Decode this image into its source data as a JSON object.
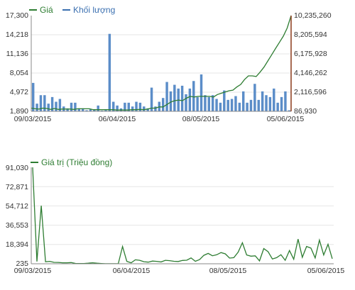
{
  "chart_data": [
    {
      "type": "line+bar",
      "legend": [
        {
          "label": "Giá",
          "color": "#2e7d32"
        },
        {
          "label": "Khối lượng",
          "color": "#3a6fb0"
        }
      ],
      "left_ticks": [
        "17,300",
        "14,218",
        "11,136",
        "8,054",
        "4,972",
        "1,890"
      ],
      "right_ticks": [
        "10,235,260",
        "8,205,594",
        "6,175,928",
        "4,146,262",
        "2,116,596",
        "86,930"
      ],
      "x_ticks": [
        "09/03/2015",
        "06/04/2015",
        "08/05/2015",
        "05/06/2015"
      ],
      "price_range": [
        1890,
        17300
      ],
      "volume_range": [
        86930,
        10235260
      ],
      "price": [
        2400,
        2300,
        2250,
        2400,
        2350,
        2200,
        2350,
        2200,
        2250,
        2250,
        2250,
        2200,
        2300,
        2300,
        2300,
        2300,
        2150,
        2150,
        2150,
        2150,
        2150,
        2150,
        2100,
        2100,
        2100,
        2100,
        2150,
        2150,
        2200,
        2150,
        2250,
        2400,
        2400,
        2600,
        2600,
        3000,
        3400,
        3600,
        3700,
        3600,
        4000,
        4300,
        4200,
        4300,
        4300,
        4300,
        4300,
        4200,
        4600,
        4800,
        5000,
        5200,
        5300,
        5800,
        6200,
        7000,
        7600,
        7600,
        7500,
        8200,
        9000,
        10000,
        11000,
        12000,
        13000,
        14000,
        15300,
        17300
      ],
      "volume": [
        3100000,
        900000,
        1800000,
        1800000,
        900000,
        1600000,
        1100000,
        1400000,
        600000,
        400000,
        1000000,
        1000000,
        400000,
        400000,
        200000,
        300000,
        250000,
        700000,
        150000,
        200000,
        8300000,
        1100000,
        700000,
        400000,
        1000000,
        1000000,
        600000,
        1100000,
        1000000,
        600000,
        400000,
        2600000,
        600000,
        1100000,
        1500000,
        3200000,
        2200000,
        2900000,
        2500000,
        2800000,
        1900000,
        2500000,
        3300000,
        1600000,
        4000000,
        1800000,
        1600000,
        1800000,
        1400000,
        1000000,
        2300000,
        1300000,
        1400000,
        1700000,
        1000000,
        2200000,
        1000000,
        1300000,
        3000000,
        1300000,
        2200000,
        1800000,
        1600000,
        2500000,
        1000000,
        1600000,
        2200000,
        200000
      ]
    },
    {
      "type": "line",
      "legend": [
        {
          "label": "Giá trị (Triệu đồng)",
          "color": "#2e7d32"
        }
      ],
      "y_ticks": [
        "91,030",
        "72,871",
        "54,712",
        "36,553",
        "18,394",
        "235"
      ],
      "x_ticks": [
        "09/03/2015",
        "06/04/2015",
        "08/05/2015",
        "05/06/2015"
      ],
      "y_range": [
        235,
        91030
      ],
      "values": [
        91030,
        2400,
        55000,
        2100,
        2500,
        1600,
        1500,
        1200,
        1200,
        1400,
        600,
        500,
        500,
        800,
        1200,
        800,
        500,
        300,
        300,
        300,
        300,
        16500,
        2500,
        1200,
        4000,
        3500,
        2200,
        1800,
        2800,
        2500,
        2000,
        3500,
        3200,
        2600,
        2400,
        3400,
        3600,
        5700,
        2600,
        4200,
        8200,
        10000,
        7800,
        8700,
        10800,
        9600,
        5600,
        6000,
        11200,
        20000,
        8500,
        7400,
        7700,
        3000,
        14500,
        11600,
        4800,
        6000,
        8800,
        3500,
        12700,
        4500,
        23500,
        6300,
        16500,
        15000,
        5700,
        22500,
        8500,
        18600,
        5000
      ]
    }
  ]
}
